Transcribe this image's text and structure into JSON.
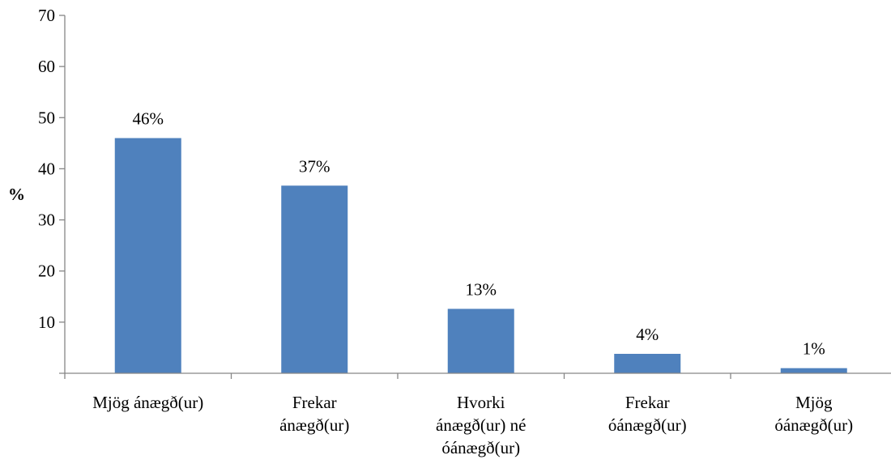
{
  "chart_data": {
    "type": "bar",
    "categories": [
      [
        "Mjög ánægð(ur)"
      ],
      [
        "Frekar",
        "ánægð(ur)"
      ],
      [
        "Hvorki",
        "ánægð(ur) né",
        "óánægð(ur)"
      ],
      [
        "Frekar",
        "óánægð(ur)"
      ],
      [
        "Mjög",
        "óánægð(ur)"
      ]
    ],
    "values": [
      46,
      36.7,
      12.6,
      3.8,
      1
    ],
    "data_labels": [
      "46%",
      "37%",
      "13%",
      "4%",
      "1%"
    ],
    "ylabel": "%",
    "xlabel": "",
    "ylim": [
      0,
      70
    ],
    "yticks": [
      10,
      20,
      30,
      40,
      50,
      60,
      70
    ],
    "grid": false,
    "legend": "none",
    "bar_color": "#4f81bd"
  }
}
